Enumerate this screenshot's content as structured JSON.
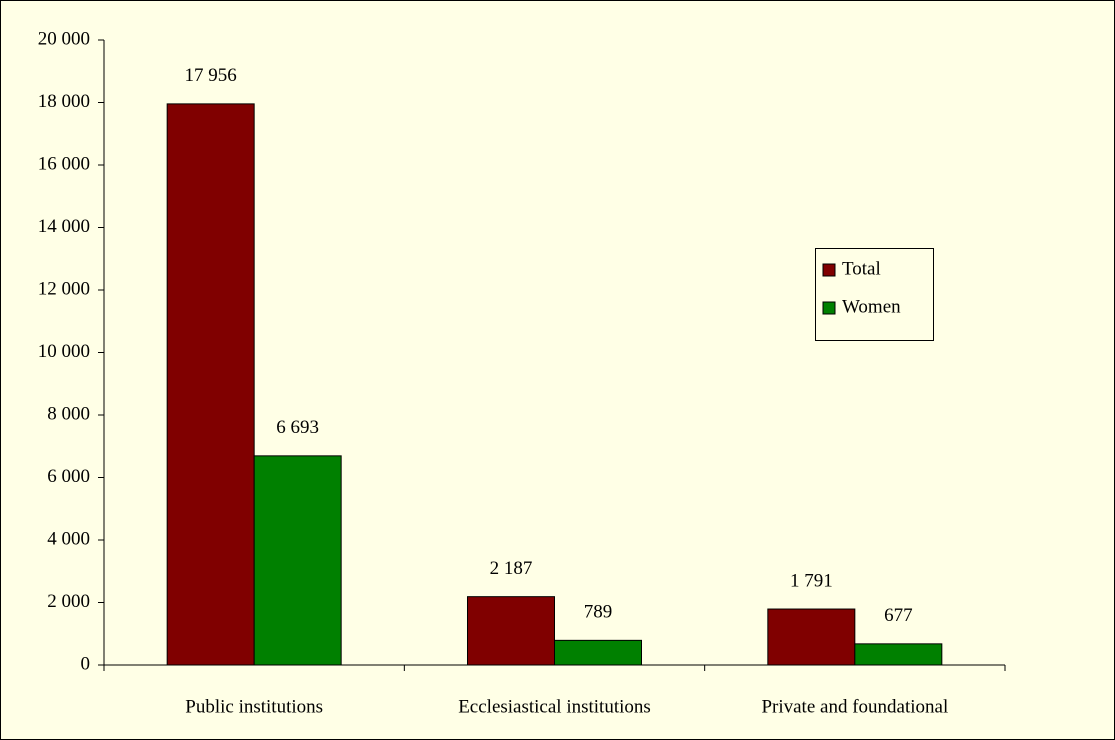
{
  "chart_data": {
    "type": "bar",
    "categories": [
      "Public institutions",
      "Ecclesiastical institutions",
      "Private and foundational"
    ],
    "series": [
      {
        "name": "Total",
        "color": "#800000",
        "values": [
          17956,
          2187,
          1791
        ],
        "value_labels": [
          "17 956",
          "2 187",
          "1 791"
        ]
      },
      {
        "name": "Women",
        "color": "#008000",
        "values": [
          6693,
          789,
          677
        ],
        "value_labels": [
          "6 693",
          "789",
          "677"
        ]
      }
    ],
    "ylim": [
      0,
      20000
    ],
    "yticks": [
      {
        "value": 0,
        "label": "0"
      },
      {
        "value": 2000,
        "label": "2 000"
      },
      {
        "value": 4000,
        "label": "4 000"
      },
      {
        "value": 6000,
        "label": "6 000"
      },
      {
        "value": 8000,
        "label": "8 000"
      },
      {
        "value": 10000,
        "label": "10 000"
      },
      {
        "value": 12000,
        "label": "12 000"
      },
      {
        "value": 14000,
        "label": "14 000"
      },
      {
        "value": 16000,
        "label": "16 000"
      },
      {
        "value": 18000,
        "label": "18 000"
      },
      {
        "value": 20000,
        "label": "20 000"
      }
    ],
    "grid": false,
    "legend": "right"
  }
}
